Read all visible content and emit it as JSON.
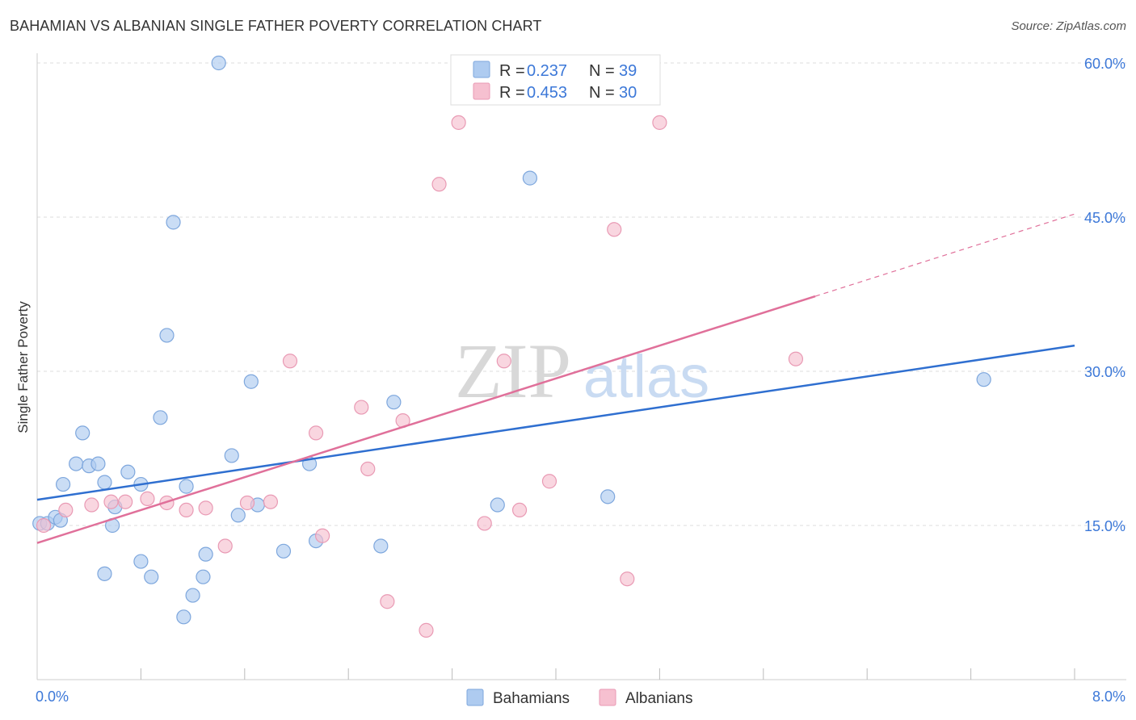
{
  "title": "BAHAMIAN VS ALBANIAN SINGLE FATHER POVERTY CORRELATION CHART",
  "source": "Source: ZipAtlas.com",
  "watermark": {
    "zip": "ZIP",
    "atlas": "atlas"
  },
  "colors": {
    "blue": "#2f6fd0",
    "pink": "#e0709a",
    "blue_fill": "#aecbf0",
    "pink_fill": "#f6c0d0",
    "value_text": "#3c78d8"
  },
  "legend_box": [
    {
      "r_label": "R =",
      "r_value": "0.237",
      "n_label": "N =",
      "n_value": "39"
    },
    {
      "r_label": "R =",
      "r_value": "0.453",
      "n_label": "N =",
      "n_value": "30"
    }
  ],
  "chart_data": {
    "type": "scatter",
    "xlabel": "",
    "ylabel": "Single Father Poverty",
    "xlim": [
      0,
      8
    ],
    "ylim": [
      0,
      60
    ],
    "x_ticks": [
      "0.0%",
      "8.0%"
    ],
    "y_ticks": [
      "15.0%",
      "30.0%",
      "45.0%",
      "60.0%"
    ],
    "grid": true,
    "legend_position": "bottom-center",
    "series": [
      {
        "name": "Bahamians",
        "color": "#2f6fd0",
        "trendline": {
          "x": [
            0,
            8
          ],
          "y": [
            17.5,
            32.5
          ],
          "dashed_from": null
        },
        "points": [
          [
            0.02,
            15.2
          ],
          [
            0.08,
            15.2
          ],
          [
            0.14,
            15.8
          ],
          [
            0.18,
            15.5
          ],
          [
            0.2,
            19.0
          ],
          [
            0.35,
            24.0
          ],
          [
            0.3,
            21.0
          ],
          [
            0.4,
            20.8
          ],
          [
            0.47,
            21.0
          ],
          [
            0.52,
            19.2
          ],
          [
            0.6,
            16.8
          ],
          [
            0.58,
            15.0
          ],
          [
            0.7,
            20.2
          ],
          [
            0.8,
            19.0
          ],
          [
            0.95,
            25.5
          ],
          [
            1.0,
            33.5
          ],
          [
            1.05,
            44.5
          ],
          [
            1.15,
            18.8
          ],
          [
            1.4,
            60.0
          ],
          [
            1.5,
            21.8
          ],
          [
            1.55,
            16.0
          ],
          [
            1.65,
            29.0
          ],
          [
            1.7,
            17.0
          ],
          [
            2.1,
            21.0
          ],
          [
            2.15,
            13.5
          ],
          [
            2.75,
            27.0
          ],
          [
            2.65,
            13.0
          ],
          [
            1.9,
            12.5
          ],
          [
            1.3,
            12.2
          ],
          [
            1.28,
            10.0
          ],
          [
            0.52,
            10.3
          ],
          [
            0.8,
            11.5
          ],
          [
            0.88,
            10.0
          ],
          [
            1.2,
            8.2
          ],
          [
            1.13,
            6.1
          ],
          [
            3.55,
            17.0
          ],
          [
            3.8,
            48.8
          ],
          [
            4.4,
            17.8
          ],
          [
            7.3,
            29.2
          ]
        ]
      },
      {
        "name": "Albanians",
        "color": "#e0709a",
        "trendline": {
          "x": [
            0,
            8
          ],
          "y": [
            13.3,
            45.3
          ],
          "dashed_from": 6.0
        },
        "points": [
          [
            0.05,
            15.0
          ],
          [
            0.22,
            16.5
          ],
          [
            0.42,
            17.0
          ],
          [
            0.57,
            17.3
          ],
          [
            0.68,
            17.3
          ],
          [
            0.85,
            17.6
          ],
          [
            1.0,
            17.2
          ],
          [
            1.15,
            16.5
          ],
          [
            1.3,
            16.7
          ],
          [
            1.62,
            17.2
          ],
          [
            1.8,
            17.3
          ],
          [
            1.45,
            13.0
          ],
          [
            1.95,
            31.0
          ],
          [
            2.15,
            24.0
          ],
          [
            2.2,
            14.0
          ],
          [
            2.5,
            26.5
          ],
          [
            2.55,
            20.5
          ],
          [
            2.82,
            25.2
          ],
          [
            2.7,
            7.6
          ],
          [
            3.0,
            4.8
          ],
          [
            3.1,
            48.2
          ],
          [
            3.25,
            54.2
          ],
          [
            3.45,
            15.2
          ],
          [
            3.6,
            31.0
          ],
          [
            3.72,
            16.5
          ],
          [
            3.95,
            19.3
          ],
          [
            4.45,
            43.8
          ],
          [
            4.55,
            9.8
          ],
          [
            4.8,
            54.2
          ],
          [
            5.85,
            31.2
          ]
        ]
      }
    ]
  }
}
